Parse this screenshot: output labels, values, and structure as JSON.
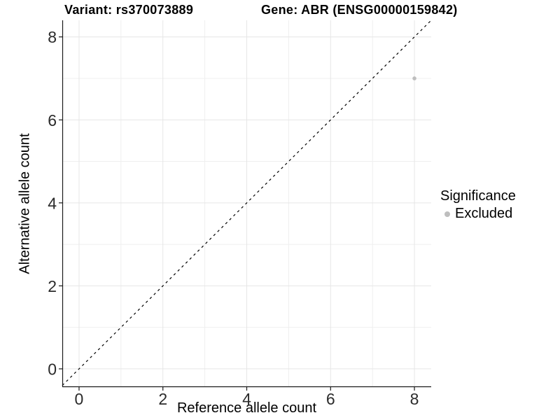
{
  "header": {
    "variant_title": "Variant: rs370073889",
    "gene_title": "Gene: ABR (ENSG00000159842)"
  },
  "legend": {
    "title": "Significance",
    "items": [
      {
        "label": "Excluded",
        "color": "#bebebe"
      }
    ]
  },
  "chart_data": {
    "type": "scatter",
    "titles": [
      "Variant: rs370073889",
      "Gene: ABR (ENSG00000159842)"
    ],
    "xlabel": "Reference allele count",
    "ylabel": "Alternative allele count",
    "xlim": [
      -0.4,
      8.4
    ],
    "ylim": [
      -0.44,
      8.4
    ],
    "xticks": [
      0,
      2,
      4,
      6,
      8
    ],
    "yticks": [
      0,
      2,
      4,
      6,
      8
    ],
    "x_minor": [
      1,
      3,
      5,
      7
    ],
    "y_minor": [
      1,
      3,
      5,
      7
    ],
    "grid": true,
    "legend_position": "right",
    "legend_title": "Significance",
    "series": [
      {
        "name": "Excluded",
        "color": "#bebebe",
        "points": [
          {
            "x": 8,
            "y": 7
          }
        ]
      }
    ],
    "reference_line": {
      "kind": "identity",
      "slope": 1,
      "intercept": 0,
      "style": "dashed",
      "color": "#000000"
    },
    "style_colors": {
      "grid_major": "#e6e6e6",
      "grid_minor": "#efefef",
      "axis": "#1a1a1a",
      "tick_label": "#2b2b2b"
    }
  }
}
